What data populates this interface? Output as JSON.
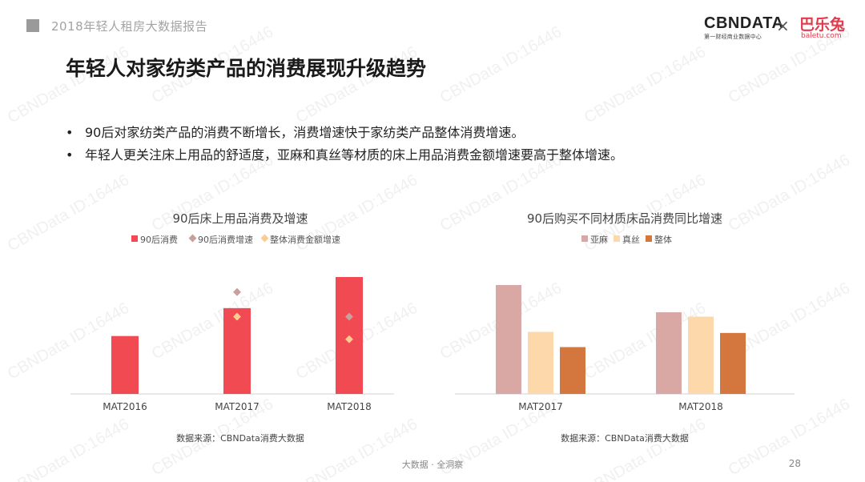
{
  "header": {
    "report_title": "2018年轻人租房大数据报告",
    "logo_cbn": "CBNDATA",
    "logo_cbn_sub": "第一财经商业数据中心",
    "logo_separator": "×",
    "logo_partner": "巴乐兔",
    "logo_partner_sub": "baletu.com"
  },
  "page_title": "年轻人对家纺类产品的消费展现升级趋势",
  "bullets": [
    "90后对家纺类产品的消费不断增长，消费增速快于家纺类产品整体消费增速。",
    "年轻人更关注床上用品的舒适度，亚麻和真丝等材质的床上用品消费金额增速要高于整体增速。"
  ],
  "watermark_text": "CBNData ID:16446",
  "footer": {
    "center": "大数据 · 全洞察",
    "page_number": "28"
  },
  "chart_data": [
    {
      "type": "bar",
      "title": "90后床上用品消费及增速",
      "categories": [
        "MAT2016",
        "MAT2017",
        "MAT2018"
      ],
      "series": [
        {
          "name": "90后消费",
          "kind": "bar",
          "color": "#f24a52",
          "values": [
            0.54,
            0.8,
            1.09
          ]
        },
        {
          "name": "90后消费增速",
          "kind": "marker",
          "color": "#c9a09b",
          "values": [
            null,
            0.95,
            0.72
          ]
        },
        {
          "name": "整体消费金额增速",
          "kind": "marker",
          "color": "#fbcb91",
          "values": [
            null,
            0.72,
            0.51
          ]
        }
      ],
      "ylim": [
        0,
        1.2
      ],
      "grid": false,
      "legend": "top",
      "source": "数据来源：CBNData消费大数据"
    },
    {
      "type": "bar",
      "title": "90后购买不同材质床品消费同比增速",
      "categories": [
        "MAT2017",
        "MAT2018"
      ],
      "series": [
        {
          "name": "亚麻",
          "color": "#d9a8a5",
          "values": [
            1.0,
            0.75
          ]
        },
        {
          "name": "真丝",
          "color": "#fdd8ab",
          "values": [
            0.57,
            0.71
          ]
        },
        {
          "name": "整体",
          "color": "#d4773f",
          "values": [
            0.43,
            0.56
          ]
        }
      ],
      "ylim": [
        0,
        1.1
      ],
      "grid": false,
      "legend": "top",
      "source": "数据来源：CBNData消费大数据"
    }
  ]
}
